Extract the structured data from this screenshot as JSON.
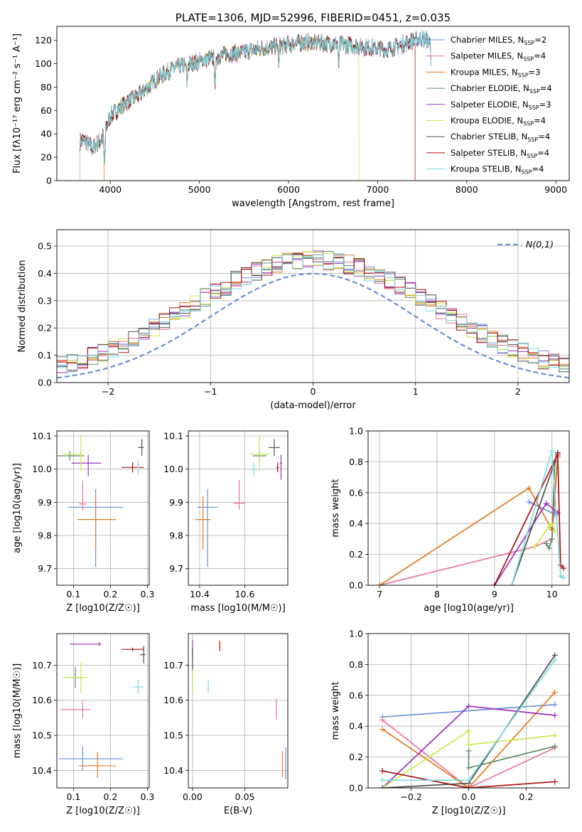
{
  "colors": [
    "#6a8fd8",
    "#e7759d",
    "#e07b22",
    "#5d8a66",
    "#9b30c0",
    "#c9e84a",
    "#505050",
    "#aa1010",
    "#7fd8dc"
  ],
  "chart_data": [
    {
      "id": "spectrum",
      "type": "line",
      "title": "PLATE=1306, MJD=52996, FIBERID=0451, z=0.035",
      "xlabel": "wavelength [Angstrom, rest frame]",
      "ylabel": "Flux [fλ10⁻¹⁷ erg cm⁻² s⁻¹ A⁻¹]",
      "xlim": [
        3400,
        9150
      ],
      "ylim": [
        0,
        132
      ],
      "xticks": [
        4000,
        5000,
        6000,
        7000,
        8000,
        9000
      ],
      "yticks": [
        0,
        20,
        40,
        60,
        80,
        100,
        120
      ],
      "grid": false,
      "legend_position": "top-right",
      "legend": [
        "Chabrier MILES, NSSP=2",
        "Salpeter MILES, NSSP=4",
        "Kroupa MILES, NSSP=3",
        "Chabrier ELODIE, NSSP=4",
        "Salpeter ELODIE, NSSP=3",
        "Kroupa ELODIE, NSSP=4",
        "Chabrier STELIB, NSSP=4",
        "Salpeter STELIB, NSSP=4",
        "Kroupa STELIB, NSSP=4"
      ],
      "legend_parts": [
        [
          "Chabrier MILES, N",
          "SSP",
          "=2"
        ],
        [
          "Salpeter MILES, N",
          "SSP",
          "=4"
        ],
        [
          "Kroupa MILES, N",
          "SSP",
          "=3"
        ],
        [
          "Chabrier ELODIE, N",
          "SSP",
          "=4"
        ],
        [
          "Salpeter ELODIE, N",
          "SSP",
          "=3"
        ],
        [
          "Kroupa ELODIE, N",
          "SSP",
          "=4"
        ],
        [
          "Chabrier STELIB, N",
          "SSP",
          "=4"
        ],
        [
          "Salpeter STELIB, N",
          "SSP",
          "=4"
        ],
        [
          "Kroupa STELIB, N",
          "SSP",
          "=4"
        ]
      ],
      "continuum": {
        "x": [
          3650,
          3700,
          3800,
          3900,
          4000,
          4100,
          4200,
          4300,
          4400,
          4500,
          4700,
          4900,
          5100,
          5300,
          5500,
          5700,
          5900,
          6100,
          6300,
          6500,
          6700,
          6900,
          7100,
          7300,
          7500,
          7600
        ],
        "y": [
          33,
          35,
          28,
          35,
          55,
          62,
          68,
          72,
          78,
          86,
          96,
          100,
          104,
          108,
          110,
          113,
          115,
          118,
          118,
          117,
          116,
          114,
          112,
          117,
          122,
          118
        ]
      },
      "dips": [
        {
          "x": 3934,
          "y": 12
        },
        {
          "x": 4861,
          "y": 80
        },
        {
          "x": 5175,
          "y": 78
        },
        {
          "x": 5890,
          "y": 95
        },
        {
          "x": 6563,
          "y": 95
        },
        {
          "x": 7600,
          "y": 100
        }
      ],
      "model_ends": [
        {
          "series": 2,
          "x": 3930
        },
        {
          "series": 5,
          "x": 6790
        },
        {
          "series": 7,
          "x": 7420
        }
      ]
    },
    {
      "id": "residuals",
      "type": "histogram",
      "xlabel": "(data-model)/error",
      "ylabel": "Normed distribution",
      "xlim": [
        -2.5,
        2.5
      ],
      "ylim": [
        0,
        0.56
      ],
      "xticks": [
        -2,
        -1,
        0,
        1,
        2
      ],
      "yticks": [
        0.0,
        0.1,
        0.2,
        0.3,
        0.4,
        0.5
      ],
      "grid": true,
      "legend_position": "top-right",
      "reference_curve": {
        "name": "N(0,1)",
        "mean": 0,
        "sigma": 1,
        "style": "dashed"
      },
      "bin_width": 0.1
    },
    {
      "id": "age_Z",
      "type": "scatter",
      "xlabel": "Z [log10(Z/Z☉)]",
      "ylabel": "age [log10(age/yr)]",
      "xlim": [
        0.055,
        0.305
      ],
      "ylim": [
        9.65,
        10.115
      ],
      "xticks": [
        0.1,
        0.2,
        0.3
      ],
      "yticks": [
        9.7,
        9.8,
        9.9,
        10.0,
        10.1
      ],
      "grid": true,
      "points": [
        {
          "x": 0.16,
          "y": 9.885,
          "xerr": [
            0.075,
            0.075
          ],
          "yerr": [
            0.18,
            0.055
          ]
        },
        {
          "x": 0.125,
          "y": 9.895,
          "xerr": [
            0.01,
            0.01
          ],
          "yerr": [
            0.02,
            0.07
          ]
        },
        {
          "x": 0.16,
          "y": 9.848,
          "xerr": [
            0.05,
            0.055
          ],
          "yerr": [
            0.09,
            0.07
          ]
        },
        {
          "x": 0.09,
          "y": 10.04,
          "xerr": [
            0.035,
            0.04
          ],
          "yerr": [
            0.015,
            0.015
          ]
        },
        {
          "x": 0.14,
          "y": 10.018,
          "xerr": [
            0.045,
            0.035
          ],
          "yerr": [
            0.04,
            0.025
          ]
        },
        {
          "x": 0.12,
          "y": 10.045,
          "xerr": [
            0.05,
            0.005
          ],
          "yerr": [
            0.05,
            0.055
          ]
        },
        {
          "x": 0.285,
          "y": 10.065,
          "xerr": [
            0.01,
            0.005
          ],
          "yerr": [
            0.025,
            0.025
          ]
        },
        {
          "x": 0.26,
          "y": 10.005,
          "xerr": [
            0.03,
            0.03
          ],
          "yerr": [
            0.015,
            0.015
          ]
        },
        {
          "x": 0.275,
          "y": 10.005,
          "xerr": [
            0.003,
            0.003
          ],
          "yerr": [
            0.02,
            0.02
          ]
        }
      ]
    },
    {
      "id": "age_mass",
      "type": "scatter",
      "xlabel": "mass [log10(M/M☉)]",
      "ylabel": "",
      "xlim": [
        10.35,
        10.79
      ],
      "ylim": [
        9.65,
        10.115
      ],
      "xticks": [
        10.4,
        10.6
      ],
      "yticks": [
        9.7,
        9.8,
        9.9,
        10.0,
        10.1
      ],
      "grid": true,
      "points": [
        {
          "x": 10.435,
          "y": 9.885,
          "xerr": [
            0.045,
            0.045
          ],
          "yerr": [
            0.18,
            0.055
          ]
        },
        {
          "x": 10.575,
          "y": 9.897,
          "xerr": [
            0.025,
            0.025
          ],
          "yerr": [
            0.02,
            0.07
          ]
        },
        {
          "x": 10.415,
          "y": 9.848,
          "xerr": [
            0.035,
            0.035
          ],
          "yerr": [
            0.09,
            0.07
          ]
        },
        {
          "x": 10.665,
          "y": 10.04,
          "xerr": [
            0.03,
            0.03
          ],
          "yerr": [
            0.015,
            0.015
          ]
        },
        {
          "x": 10.76,
          "y": 10.018,
          "xerr": [
            0.005,
            0.005
          ],
          "yerr": [
            0.05,
            0.025
          ]
        },
        {
          "x": 10.665,
          "y": 10.045,
          "xerr": [
            0.045,
            0.045
          ],
          "yerr": [
            0.05,
            0.055
          ]
        },
        {
          "x": 10.73,
          "y": 10.065,
          "xerr": [
            0.025,
            0.025
          ],
          "yerr": [
            0.025,
            0.025
          ]
        },
        {
          "x": 10.745,
          "y": 10.005,
          "xerr": [
            0.005,
            0.005
          ],
          "yerr": [
            0.015,
            0.015
          ]
        },
        {
          "x": 10.64,
          "y": 10.0,
          "xerr": [
            0.02,
            0.02
          ],
          "yerr": [
            0.02,
            0.02
          ]
        }
      ]
    },
    {
      "id": "mw_age",
      "type": "line",
      "xlabel": "age [log10(age/yr)]",
      "ylabel": "mass weight",
      "xlim": [
        6.8,
        10.3
      ],
      "ylim": [
        0,
        1
      ],
      "xticks": [
        7,
        8,
        9,
        10
      ],
      "yticks": [
        0.0,
        0.2,
        0.4,
        0.6,
        0.8,
        1.0
      ],
      "grid": true,
      "series": [
        {
          "x": [
            9.6,
            10.05
          ],
          "y": [
            0.54,
            0.46
          ]
        },
        {
          "x": [
            7.0,
            9.7,
            10.0,
            10.1
          ],
          "y": [
            0.0,
            0.25,
            0.3,
            0.83
          ]
        },
        {
          "x": [
            7.0,
            9.6,
            10.0,
            10.1
          ],
          "y": [
            0.0,
            0.63,
            0.36,
            0.84
          ]
        },
        {
          "x": [
            9.9,
            9.95,
            10.0,
            10.05
          ],
          "y": [
            0.27,
            0.24,
            0.3,
            0.8
          ]
        },
        {
          "x": [
            9.0,
            9.9,
            10.1
          ],
          "y": [
            0.0,
            0.53,
            0.47
          ]
        },
        {
          "x": [
            9.7,
            9.95,
            10.0,
            10.05
          ],
          "y": [
            0.25,
            0.38,
            0.4,
            0.35
          ]
        },
        {
          "x": [
            9.3,
            10.05,
            10.1
          ],
          "y": [
            0.0,
            0.8,
            0.86
          ]
        },
        {
          "x": [
            9.0,
            10.1,
            10.15,
            10.2
          ],
          "y": [
            0.0,
            0.85,
            0.13,
            0.11
          ]
        },
        {
          "x": [
            9.3,
            10.0,
            10.15,
            10.2
          ],
          "y": [
            0.0,
            0.87,
            0.06,
            0.05
          ]
        }
      ]
    },
    {
      "id": "mass_Z",
      "type": "scatter",
      "xlabel": "Z [log10(Z/Z☉)]",
      "ylabel": "mass [log10(M/M☉)]",
      "xlim": [
        0.055,
        0.305
      ],
      "ylim": [
        10.35,
        10.79
      ],
      "xticks": [
        0.1,
        0.2,
        0.3
      ],
      "yticks": [
        10.4,
        10.5,
        10.6,
        10.7
      ],
      "grid": true,
      "points": [
        {
          "x": 0.125,
          "y": 10.433,
          "xerr": [
            0.065,
            0.11
          ],
          "yerr": [
            0.035,
            0.035
          ]
        },
        {
          "x": 0.125,
          "y": 10.573,
          "xerr": [
            0.06,
            0.02
          ],
          "yerr": [
            0.025,
            0.025
          ]
        },
        {
          "x": 0.165,
          "y": 10.413,
          "xerr": [
            0.05,
            0.05
          ],
          "yerr": [
            0.035,
            0.04
          ]
        },
        {
          "x": 0.105,
          "y": 10.665,
          "xerr": [
            0.02,
            0.02
          ],
          "yerr": [
            0.03,
            0.03
          ]
        },
        {
          "x": 0.17,
          "y": 10.76,
          "xerr": [
            0.08,
            0.005
          ],
          "yerr": [
            0.005,
            0.005
          ]
        },
        {
          "x": 0.12,
          "y": 10.665,
          "xerr": [
            0.05,
            0.02
          ],
          "yerr": [
            0.045,
            0.045
          ]
        },
        {
          "x": 0.29,
          "y": 10.73,
          "xerr": [
            0.01,
            0.005
          ],
          "yerr": [
            0.025,
            0.025
          ]
        },
        {
          "x": 0.26,
          "y": 10.745,
          "xerr": [
            0.03,
            0.03
          ],
          "yerr": [
            0.005,
            0.005
          ]
        },
        {
          "x": 0.275,
          "y": 10.638,
          "xerr": [
            0.015,
            0.015
          ],
          "yerr": [
            0.02,
            0.02
          ]
        }
      ]
    },
    {
      "id": "mass_ebv",
      "type": "scatter",
      "xlabel": "E(B-V)",
      "ylabel": "",
      "xlim": [
        -0.004,
        0.091
      ],
      "ylim": [
        10.35,
        10.79
      ],
      "xticks": [
        0.0,
        0.05
      ],
      "yticks": [
        10.4,
        10.5,
        10.6,
        10.7
      ],
      "grid": true,
      "points": [
        {
          "x": 0.089,
          "y": 10.42,
          "xerr": [
            0.0003,
            0.0003
          ],
          "yerr": [
            0.045,
            0.045
          ]
        },
        {
          "x": 0.08,
          "y": 10.575,
          "xerr": [
            0.0003,
            0.0003
          ],
          "yerr": [
            0.03,
            0.03
          ]
        },
        {
          "x": 0.086,
          "y": 10.415,
          "xerr": [
            0.0003,
            0.0003
          ],
          "yerr": [
            0.035,
            0.04
          ]
        },
        {
          "x": 0.0,
          "y": 10.66,
          "xerr": [
            0.0003,
            0.0003
          ],
          "yerr": [
            0.035,
            0.035
          ]
        },
        {
          "x": 0.0,
          "y": 10.742,
          "xerr": [
            0.0003,
            0.0003
          ],
          "yerr": [
            0.03,
            0.03
          ]
        },
        {
          "x": 0.0,
          "y": 10.655,
          "xerr": [
            0.0003,
            0.0003
          ],
          "yerr": [
            0.03,
            0.03
          ]
        },
        {
          "x": 0.0,
          "y": 10.72,
          "xerr": [
            0.0003,
            0.0003
          ],
          "yerr": [
            0.03,
            0.03
          ]
        },
        {
          "x": 0.026,
          "y": 10.755,
          "xerr": [
            0.0003,
            0.0003
          ],
          "yerr": [
            0.015,
            0.015
          ]
        },
        {
          "x": 0.015,
          "y": 10.64,
          "xerr": [
            0.0003,
            0.0003
          ],
          "yerr": [
            0.02,
            0.02
          ]
        }
      ]
    },
    {
      "id": "mw_Z",
      "type": "line",
      "xlabel": "Z [log10(Z/Z☉)]",
      "ylabel": "mass weight",
      "xlim": [
        -0.35,
        0.35
      ],
      "ylim": [
        0,
        1
      ],
      "xticks": [
        -0.2,
        0.0,
        0.2
      ],
      "yticks": [
        0.0,
        0.2,
        0.4,
        0.6,
        0.8,
        1.0
      ],
      "grid": true,
      "series": [
        {
          "x": [
            -0.3,
            0.3
          ],
          "y": [
            0.46,
            0.54
          ]
        },
        {
          "x": [
            -0.3,
            0.0,
            0.3
          ],
          "y": [
            0.44,
            0.0,
            0.26
          ]
        },
        {
          "x": [
            -0.3,
            0.0,
            0.3
          ],
          "y": [
            0.38,
            0.0,
            0.62
          ]
        },
        {
          "x": [
            0.0,
            0.0,
            0.3
          ],
          "y": [
            0.24,
            0.13,
            0.27
          ]
        },
        {
          "x": [
            -0.3,
            0.0,
            0.3
          ],
          "y": [
            0.0,
            0.53,
            0.47
          ]
        },
        {
          "x": [
            -0.3,
            0.0,
            0.0,
            0.3
          ],
          "y": [
            0.0,
            0.37,
            0.28,
            0.34
          ]
        },
        {
          "x": [
            -0.3,
            0.0,
            0.3
          ],
          "y": [
            0.0,
            0.03,
            0.86
          ]
        },
        {
          "x": [
            -0.3,
            0.0,
            0.3
          ],
          "y": [
            0.11,
            0.0,
            0.04
          ]
        },
        {
          "x": [
            -0.3,
            0.0,
            0.3
          ],
          "y": [
            0.05,
            0.05,
            0.83
          ]
        }
      ]
    }
  ]
}
